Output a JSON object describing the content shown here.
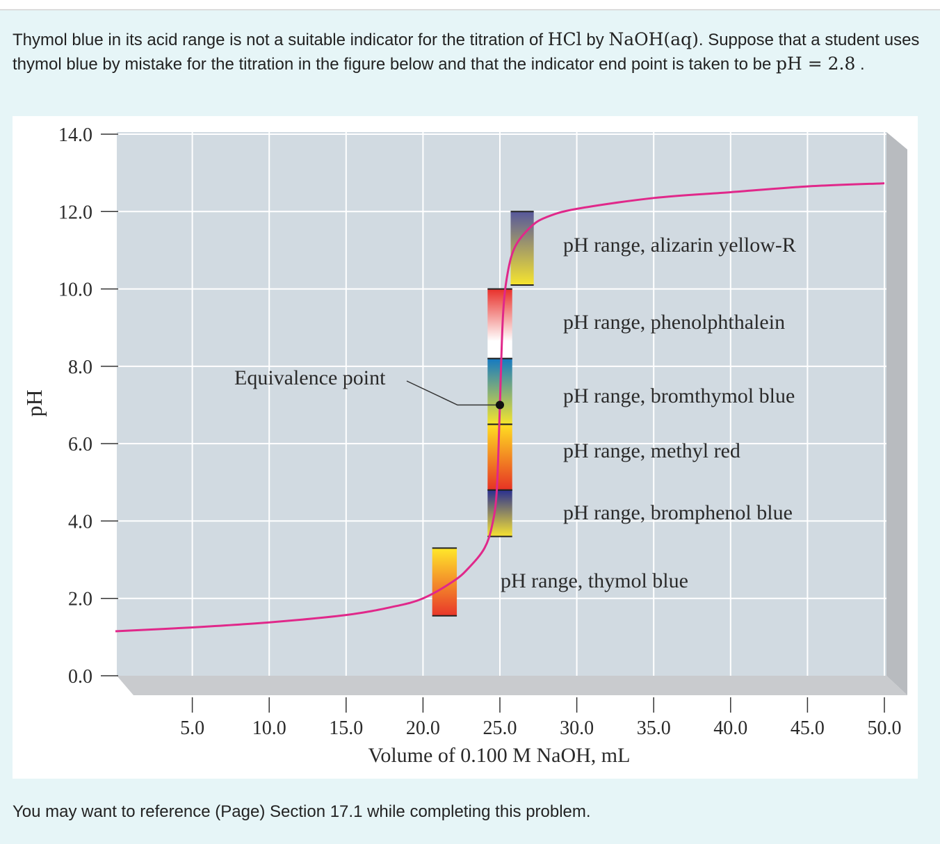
{
  "question": {
    "part1": "Thymol blue in its acid range is not a suitable indicator for the titration of ",
    "hcl": "HCl",
    "part2": " by ",
    "naoh": "NaOH(aq)",
    "part3": ". Suppose that a student uses thymol blue by mistake for the titration in the figure below and that the indicator end point is taken to be ",
    "ph_expr": "pH = 2.8",
    "part4": " ."
  },
  "footer": "You may want to reference (Page) Section 17.1 while completing this problem.",
  "chart_data": {
    "type": "line",
    "xlabel": "Volume of 0.100 M NaOH, mL",
    "ylabel": "pH",
    "xlim": [
      0,
      50
    ],
    "ylim": [
      0,
      14
    ],
    "grid": true,
    "x_ticks": [
      "5.0",
      "10.0",
      "15.0",
      "20.0",
      "25.0",
      "30.0",
      "35.0",
      "40.0",
      "45.0",
      "50.0"
    ],
    "y_ticks": [
      "0.0",
      "2.0",
      "4.0",
      "6.0",
      "8.0",
      "10.0",
      "12.0",
      "14.0"
    ],
    "series": [
      {
        "color": "#e0288a",
        "x": [
          0,
          5,
          10,
          15,
          18,
          20,
          22,
          23,
          24,
          24.5,
          24.8,
          25,
          25.2,
          25.5,
          26,
          27,
          28,
          30,
          35,
          40,
          45,
          50
        ],
        "y": [
          1.15,
          1.25,
          1.38,
          1.57,
          1.78,
          2.0,
          2.45,
          2.8,
          3.3,
          3.9,
          4.8,
          7.0,
          9.3,
          10.4,
          11.1,
          11.6,
          11.85,
          12.07,
          12.35,
          12.5,
          12.65,
          12.73
        ]
      }
    ],
    "equivalence_point": {
      "label": "Equivalence point",
      "x": 25.0,
      "y": 7.0
    },
    "indicator_ranges": [
      {
        "label": "pH range, alizarin yellow-R",
        "x": [
          25.7,
          27.2
        ],
        "ph": [
          10.1,
          12.0
        ],
        "top_color": "#56579c",
        "bottom_color": "#f7e52e"
      },
      {
        "label": "pH range, phenolphthalein",
        "x": [
          24.2,
          25.8
        ],
        "ph": [
          8.2,
          10.0
        ],
        "top_color": "#e8302a",
        "bottom_color": "#ffffff"
      },
      {
        "label": "pH range, bromthymol blue",
        "x": [
          24.2,
          25.8
        ],
        "ph": [
          6.5,
          8.2
        ],
        "top_color": "#1479c2",
        "bottom_color": "#f6e52c"
      },
      {
        "label": "pH range, methyl red",
        "x": [
          24.2,
          25.8
        ],
        "ph": [
          4.8,
          6.5
        ],
        "top_color": "#ffdf22",
        "bottom_color": "#e63224"
      },
      {
        "label": "pH range, bromphenol blue",
        "x": [
          24.2,
          25.8
        ],
        "ph": [
          3.6,
          4.8
        ],
        "top_color": "#2a3090",
        "bottom_color": "#f8e432"
      },
      {
        "label": "pH range, thymol blue",
        "x": [
          20.6,
          22.2
        ],
        "ph": [
          1.55,
          3.3
        ],
        "top_color": "#ffe82a",
        "bottom_color": "#e8362a"
      }
    ]
  }
}
